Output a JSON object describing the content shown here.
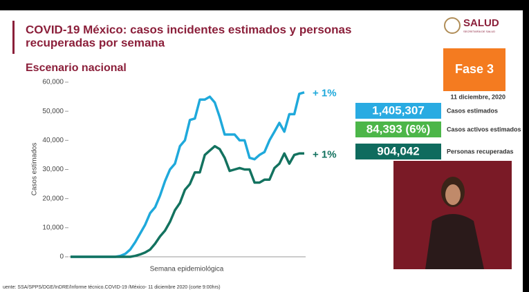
{
  "chart_data": {
    "type": "line",
    "title": "COVID-19 México: casos incidentes estimados y personas recuperadas por semana",
    "subtitle": "Escenario nacional",
    "xlabel": "Semana epidemiológica",
    "ylabel": "Casos estimados",
    "categories": [
      null,
      null,
      null,
      null,
      null,
      null,
      null,
      null,
      null,
      null,
      null,
      null,
      null,
      null,
      null,
      null,
      null,
      null,
      null,
      null,
      null,
      null,
      null,
      null,
      null,
      null,
      null,
      null,
      null,
      null,
      null,
      null,
      null,
      null,
      null,
      null,
      null,
      null,
      null,
      null,
      null,
      null,
      null,
      null,
      null,
      null,
      null,
      null
    ],
    "series": [
      {
        "color": "#1fa9db",
        "values": [
          0,
          0,
          0,
          0,
          0,
          0,
          0,
          0,
          0,
          0,
          300,
          1000,
          2500,
          5000,
          8000,
          11000,
          15000,
          17000,
          21000,
          26000,
          30000,
          32000,
          38000,
          40000,
          47000,
          47500,
          54000,
          54000,
          55000,
          53000,
          48000,
          42000,
          42000,
          42000,
          40000,
          40000,
          34000,
          33500,
          35000,
          36000,
          40000,
          43000,
          46000,
          43000,
          49000,
          49000,
          56000,
          56500
        ]
      },
      {
        "color": "#13725f",
        "values": [
          0,
          0,
          0,
          0,
          0,
          0,
          0,
          0,
          0,
          0,
          0,
          0,
          0,
          300,
          800,
          1500,
          2500,
          4500,
          7000,
          9000,
          12000,
          16000,
          18500,
          23000,
          25000,
          29000,
          29000,
          35000,
          36500,
          38000,
          37000,
          34000,
          29500,
          30000,
          30500,
          30000,
          30000,
          25500,
          25500,
          26500,
          26500,
          30500,
          32000,
          35500,
          32000,
          35000,
          35500,
          35500
        ]
      }
    ],
    "annotations": [
      "+ 1%",
      "+ 1%"
    ],
    "ylim": [
      0,
      60000
    ],
    "yticks": [
      {
        "value": 0,
        "label": "0"
      },
      {
        "value": 10000,
        "label": "10,000"
      },
      {
        "value": 20000,
        "label": "20,000"
      },
      {
        "value": 30000,
        "label": "30,000"
      },
      {
        "value": 40000,
        "label": "40,000"
      },
      {
        "value": 50000,
        "label": "50,000"
      },
      {
        "value": 60000,
        "label": "60,000"
      }
    ],
    "grid": false
  },
  "header": {
    "logo": "SALUD",
    "logo_sub": "SECRETARÍA DE SALUD",
    "phase": "Fase 3",
    "date": "11 diciembre, 2020"
  },
  "stats": [
    {
      "value": "1,405,307",
      "label": "Casos estimados"
    },
    {
      "value": "84,393 (6%)",
      "label": "Casos activos estimados"
    },
    {
      "value": "904,042",
      "label": "Personas recuperadas"
    }
  ],
  "footer": {
    "source": "uente: SSA/SPPS/DGE/InDRE/Informe técnico.COVID-19 /México- 11 diciembre 2020 (corte 9:00hrs)"
  }
}
